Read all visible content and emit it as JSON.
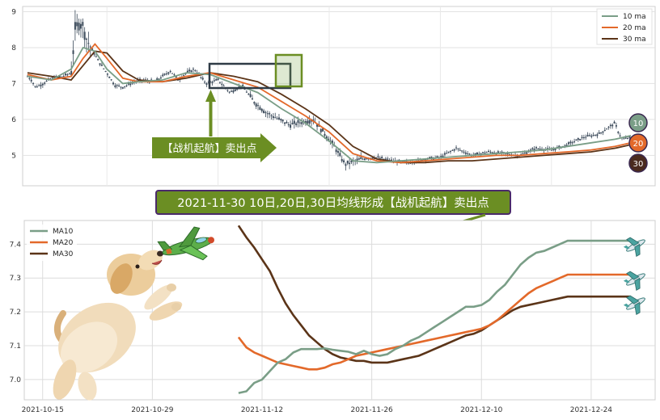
{
  "chart_data": [
    {
      "type": "line",
      "subtype": "candlestick-with-moving-averages",
      "ylim": [
        4.2,
        9.1
      ],
      "y_ticks": [
        5,
        6,
        7,
        8,
        9
      ],
      "grid": true,
      "legend_position": "top-right",
      "series": [
        {
          "name": "10 ma",
          "color": "#7a9e87"
        },
        {
          "name": "20 ma",
          "color": "#e3692a"
        },
        {
          "name": "30 ma",
          "color": "#5b3418"
        }
      ],
      "price": {
        "t": [
          0,
          5,
          10,
          20,
          30,
          45,
          55,
          60,
          65,
          70,
          75,
          80,
          90,
          100,
          110,
          120,
          135,
          145,
          160,
          170,
          180,
          190,
          200,
          210,
          225,
          240,
          255,
          270,
          285,
          300,
          330,
          360,
          385,
          400,
          420,
          440,
          460,
          480,
          500,
          520,
          540,
          560,
          580,
          600,
          620,
          640,
          660,
          680,
          700,
          720,
          740,
          745,
          750,
          760
        ],
        "close": [
          7.2,
          7.1,
          6.9,
          7.0,
          7.15,
          7.2,
          7.3,
          8.5,
          8.7,
          8.6,
          8.2,
          8.0,
          7.6,
          7.3,
          6.95,
          6.9,
          7.05,
          7.1,
          7.05,
          7.2,
          7.35,
          7.1,
          7.3,
          7.4,
          7.0,
          7.1,
          6.75,
          6.95,
          6.5,
          6.2,
          5.85,
          6.0,
          5.3,
          4.75,
          4.9,
          4.95,
          4.85,
          4.8,
          4.9,
          4.95,
          5.2,
          5.0,
          5.1,
          5.05,
          5.0,
          5.2,
          5.15,
          5.3,
          5.5,
          5.6,
          5.9,
          5.6,
          5.45,
          5.5
        ]
      },
      "ma": {
        "t": [
          0,
          30,
          55,
          70,
          85,
          100,
          120,
          140,
          170,
          200,
          230,
          260,
          290,
          320,
          350,
          380,
          410,
          440,
          470,
          500,
          530,
          560,
          590,
          620,
          650,
          680,
          710,
          740,
          760
        ],
        "ma10": [
          7.2,
          7.1,
          7.4,
          8.0,
          7.9,
          7.4,
          7.0,
          7.05,
          7.1,
          7.3,
          7.25,
          7.0,
          6.75,
          6.3,
          5.9,
          5.4,
          4.85,
          4.8,
          4.85,
          4.9,
          4.95,
          5.0,
          5.05,
          5.1,
          5.15,
          5.25,
          5.35,
          5.45,
          5.55
        ],
        "ma20": [
          7.25,
          7.1,
          7.2,
          7.7,
          8.1,
          7.7,
          7.15,
          7.05,
          7.05,
          7.2,
          7.3,
          7.1,
          6.9,
          6.5,
          6.1,
          5.65,
          5.05,
          4.85,
          4.8,
          4.85,
          4.9,
          4.95,
          5.0,
          5.0,
          5.05,
          5.1,
          5.15,
          5.25,
          5.35
        ],
        "ma30": [
          7.3,
          7.2,
          7.1,
          7.5,
          7.9,
          7.85,
          7.35,
          7.1,
          7.05,
          7.15,
          7.3,
          7.2,
          7.05,
          6.7,
          6.3,
          5.85,
          5.25,
          4.9,
          4.8,
          4.8,
          4.85,
          4.85,
          4.9,
          4.95,
          5.0,
          5.05,
          5.1,
          5.2,
          5.3
        ]
      },
      "badges": [
        "10",
        "20",
        "30"
      ]
    },
    {
      "type": "line",
      "ylim": [
        6.94,
        7.47
      ],
      "y_ticks": [
        7.0,
        7.1,
        7.2,
        7.3,
        7.4
      ],
      "x_tick_labels": [
        "2021-10-15",
        "2021-10-29",
        "2021-11-12",
        "2021-11-26",
        "2021-12-10",
        "2021-12-24"
      ],
      "x_tick_days": [
        0,
        14,
        28,
        42,
        56,
        70
      ],
      "grid": true,
      "legend_position": "top-left",
      "series": [
        {
          "name": "MA10",
          "color": "#7a9e87",
          "x": [
            25,
            26,
            27,
            28,
            29,
            30,
            31,
            32,
            33,
            34,
            35,
            36,
            37,
            38,
            39,
            40,
            41,
            42,
            43,
            44,
            45,
            46,
            47,
            48,
            49,
            50,
            51,
            52,
            53,
            54,
            55,
            56,
            57,
            58,
            59,
            60,
            61,
            62,
            63,
            64,
            65,
            66,
            67,
            68,
            69,
            70,
            71,
            72,
            73,
            74,
            75
          ],
          "y": [
            6.96,
            6.965,
            6.99,
            7.0,
            7.025,
            7.05,
            7.06,
            7.08,
            7.09,
            7.09,
            7.09,
            7.092,
            7.088,
            7.085,
            7.082,
            7.075,
            7.085,
            7.075,
            7.07,
            7.075,
            7.09,
            7.1,
            7.115,
            7.125,
            7.14,
            7.155,
            7.17,
            7.185,
            7.2,
            7.215,
            7.215,
            7.22,
            7.235,
            7.26,
            7.28,
            7.31,
            7.34,
            7.36,
            7.375,
            7.38,
            7.39,
            7.4,
            7.41,
            7.41,
            7.41,
            7.41,
            7.41,
            7.41,
            7.41,
            7.41,
            7.41
          ]
        },
        {
          "name": "MA20",
          "color": "#e3692a",
          "x": [
            25,
            26,
            27,
            28,
            29,
            30,
            31,
            32,
            33,
            34,
            35,
            36,
            37,
            38,
            39,
            40,
            41,
            42,
            43,
            44,
            45,
            46,
            47,
            48,
            49,
            50,
            51,
            52,
            53,
            54,
            55,
            56,
            57,
            58,
            59,
            60,
            61,
            62,
            63,
            64,
            65,
            66,
            67,
            68,
            69,
            70,
            71,
            72,
            73,
            74,
            75
          ],
          "y": [
            7.125,
            7.095,
            7.08,
            7.07,
            7.06,
            7.05,
            7.045,
            7.04,
            7.035,
            7.03,
            7.03,
            7.035,
            7.045,
            7.05,
            7.06,
            7.07,
            7.075,
            7.08,
            7.085,
            7.09,
            7.095,
            7.1,
            7.105,
            7.11,
            7.115,
            7.12,
            7.125,
            7.13,
            7.135,
            7.14,
            7.145,
            7.15,
            7.16,
            7.175,
            7.195,
            7.215,
            7.235,
            7.255,
            7.27,
            7.28,
            7.29,
            7.3,
            7.31,
            7.31,
            7.31,
            7.31,
            7.31,
            7.31,
            7.31,
            7.31,
            7.31
          ]
        },
        {
          "name": "MA30",
          "color": "#5b3418",
          "x": [
            25,
            26,
            27,
            28,
            29,
            30,
            31,
            32,
            33,
            34,
            35,
            36,
            37,
            38,
            39,
            40,
            41,
            42,
            43,
            44,
            45,
            46,
            47,
            48,
            49,
            50,
            51,
            52,
            53,
            54,
            55,
            56,
            57,
            58,
            59,
            60,
            61,
            62,
            63,
            64,
            65,
            66,
            67,
            68,
            69,
            70,
            71,
            72,
            73,
            74,
            75
          ],
          "y": [
            7.455,
            7.42,
            7.39,
            7.355,
            7.32,
            7.27,
            7.225,
            7.19,
            7.16,
            7.13,
            7.11,
            7.09,
            7.075,
            7.065,
            7.06,
            7.055,
            7.055,
            7.05,
            7.05,
            7.05,
            7.055,
            7.06,
            7.065,
            7.07,
            7.08,
            7.09,
            7.1,
            7.11,
            7.12,
            7.13,
            7.135,
            7.145,
            7.16,
            7.175,
            7.19,
            7.205,
            7.215,
            7.22,
            7.225,
            7.23,
            7.235,
            7.24,
            7.245,
            7.245,
            7.245,
            7.245,
            7.245,
            7.245,
            7.245,
            7.245,
            7.245
          ]
        }
      ]
    }
  ],
  "annotations": {
    "arrow_label": "【战机起航】卖出点",
    "banner": "2021-11-30 10日,20日,30日均线形成【战机起航】卖出点"
  },
  "colors": {
    "annotation_green": "#6b8e23",
    "banner_bg": "#6b8e23",
    "banner_border": "#4a2a6a",
    "highlight_box": "#2f3b46",
    "highlight_green": "#7aa64a"
  },
  "icons": [
    "fighter-jet-icon",
    "dog-illustration",
    "airplane-icon"
  ]
}
